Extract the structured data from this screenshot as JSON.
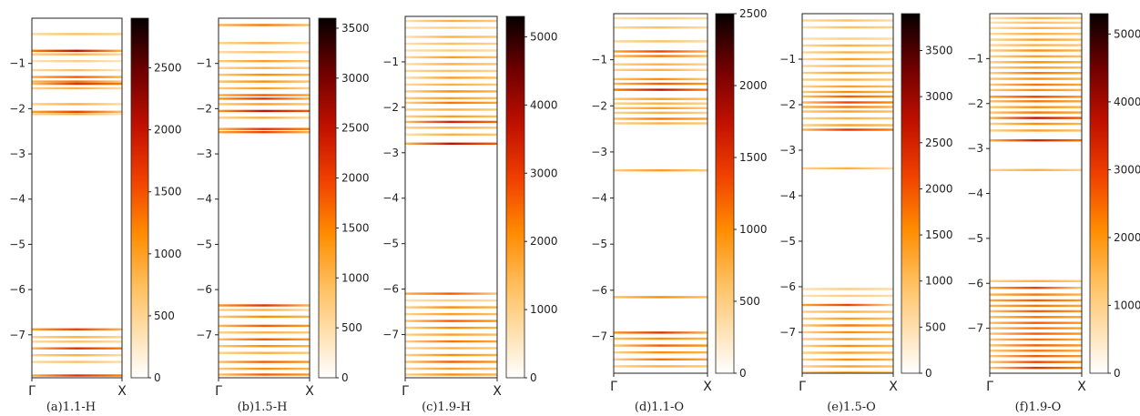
{
  "chart_data": [
    {
      "type": "heatmap",
      "caption": "(a)1.1-H",
      "xticks": [
        "Γ",
        "X"
      ],
      "yticks": [
        -1,
        -2,
        -3,
        -4,
        -5,
        -6,
        -7
      ],
      "ylim": [
        -7.95,
        0
      ],
      "colorbar": {
        "ticks": [
          0,
          500,
          1000,
          1500,
          2000,
          2500
        ],
        "max": 2900
      },
      "bands": [
        [
          -0.35,
          0.25,
          0.25
        ],
        [
          -0.72,
          0.7,
          0.4
        ],
        [
          -0.8,
          0.3,
          0.2
        ],
        [
          -0.95,
          0.2,
          0.15
        ],
        [
          -1.15,
          0.25,
          0.15
        ],
        [
          -1.3,
          0.5,
          0.4
        ],
        [
          -1.4,
          0.45,
          0.3
        ],
        [
          -1.45,
          0.4,
          0.6
        ],
        [
          -1.55,
          0.3,
          0.2
        ],
        [
          -1.9,
          0.3,
          0.2
        ],
        [
          -2.07,
          0.55,
          0.35
        ],
        [
          -2.12,
          0.3,
          0.15
        ],
        [
          -6.88,
          0.55,
          0.4
        ],
        [
          -7.05,
          0.3,
          0.25
        ],
        [
          -7.15,
          0.25,
          0.2
        ],
        [
          -7.3,
          0.45,
          0.6
        ],
        [
          -7.45,
          0.3,
          0.2
        ],
        [
          -7.6,
          0.25,
          0.2
        ],
        [
          -7.9,
          0.5,
          0.6
        ]
      ]
    },
    {
      "type": "heatmap",
      "caption": "(b)1.5-H",
      "xticks": [
        "Γ",
        "X"
      ],
      "yticks": [
        -1,
        -2,
        -3,
        -4,
        -5,
        -6,
        -7
      ],
      "ylim": [
        -7.95,
        0
      ],
      "colorbar": {
        "ticks": [
          0,
          500,
          1000,
          1500,
          2000,
          2500,
          3000,
          3500
        ],
        "max": 3600
      },
      "bands": [
        [
          -0.15,
          0.45,
          0.35
        ],
        [
          -0.55,
          0.3,
          0.2
        ],
        [
          -0.75,
          0.25,
          0.2
        ],
        [
          -0.95,
          0.35,
          0.3
        ],
        [
          -1.1,
          0.3,
          0.25
        ],
        [
          -1.25,
          0.35,
          0.4
        ],
        [
          -1.4,
          0.4,
          0.3
        ],
        [
          -1.55,
          0.35,
          0.25
        ],
        [
          -1.7,
          0.5,
          0.45
        ],
        [
          -1.78,
          0.6,
          0.4
        ],
        [
          -1.9,
          0.35,
          0.3
        ],
        [
          -2.05,
          0.6,
          0.7
        ],
        [
          -2.2,
          0.3,
          0.2
        ],
        [
          -2.45,
          0.5,
          0.6
        ],
        [
          -2.52,
          0.55,
          0.4
        ],
        [
          -6.35,
          0.6,
          0.4
        ],
        [
          -6.45,
          0.3,
          0.2
        ],
        [
          -6.6,
          0.35,
          0.4
        ],
        [
          -6.8,
          0.45,
          0.5
        ],
        [
          -6.95,
          0.3,
          0.3
        ],
        [
          -7.1,
          0.4,
          0.5
        ],
        [
          -7.25,
          0.35,
          0.4
        ],
        [
          -7.4,
          0.3,
          0.3
        ],
        [
          -7.6,
          0.4,
          0.5
        ],
        [
          -7.75,
          0.35,
          0.4
        ],
        [
          -7.88,
          0.4,
          0.5
        ]
      ]
    },
    {
      "type": "heatmap",
      "caption": "(c)1.9-H",
      "xticks": [
        "Γ",
        "X"
      ],
      "yticks": [
        -1,
        -2,
        -3,
        -4,
        -5,
        -6,
        -7
      ],
      "ylim": [
        -7.95,
        0
      ],
      "colorbar": {
        "ticks": [
          0,
          1000,
          2000,
          3000,
          4000,
          5000
        ],
        "max": 5300
      },
      "bands": [
        [
          -0.1,
          0.2,
          0.3
        ],
        [
          -0.25,
          0.2,
          0.2
        ],
        [
          -0.45,
          0.2,
          0.3
        ],
        [
          -0.6,
          0.2,
          0.25
        ],
        [
          -0.75,
          0.2,
          0.2
        ],
        [
          -0.9,
          0.25,
          0.35
        ],
        [
          -1.05,
          0.2,
          0.3
        ],
        [
          -1.2,
          0.25,
          0.25
        ],
        [
          -1.35,
          0.2,
          0.35
        ],
        [
          -1.5,
          0.25,
          0.3
        ],
        [
          -1.65,
          0.3,
          0.4
        ],
        [
          -1.8,
          0.35,
          0.35
        ],
        [
          -1.9,
          0.3,
          0.45
        ],
        [
          -2.05,
          0.3,
          0.3
        ],
        [
          -2.2,
          0.3,
          0.35
        ],
        [
          -2.32,
          0.4,
          0.65
        ],
        [
          -2.45,
          0.3,
          0.3
        ],
        [
          -2.6,
          0.2,
          0.3
        ],
        [
          -2.8,
          0.45,
          0.7
        ],
        [
          -6.1,
          0.5,
          0.3
        ],
        [
          -6.25,
          0.2,
          0.2
        ],
        [
          -6.4,
          0.3,
          0.4
        ],
        [
          -6.55,
          0.3,
          0.35
        ],
        [
          -6.7,
          0.35,
          0.5
        ],
        [
          -6.85,
          0.3,
          0.4
        ],
        [
          -7.0,
          0.3,
          0.35
        ],
        [
          -7.15,
          0.3,
          0.45
        ],
        [
          -7.3,
          0.25,
          0.3
        ],
        [
          -7.45,
          0.3,
          0.4
        ],
        [
          -7.6,
          0.35,
          0.5
        ],
        [
          -7.75,
          0.3,
          0.35
        ],
        [
          -7.88,
          0.3,
          0.4
        ]
      ]
    },
    {
      "type": "heatmap",
      "caption": "(d)1.1-O",
      "xticks": [
        "Γ",
        "X"
      ],
      "yticks": [
        -1,
        -2,
        -3,
        -4,
        -5,
        -6,
        -7
      ],
      "ylim": [
        -7.8,
        0
      ],
      "colorbar": {
        "ticks": [
          0,
          500,
          1000,
          1500,
          2000,
          2500
        ],
        "max": 2500
      },
      "bands": [
        [
          -0.1,
          0.2,
          0.2
        ],
        [
          -0.3,
          0.25,
          0.2
        ],
        [
          -0.6,
          0.25,
          0.2
        ],
        [
          -0.82,
          0.55,
          0.4
        ],
        [
          -0.92,
          0.45,
          0.35
        ],
        [
          -1.1,
          0.3,
          0.25
        ],
        [
          -1.22,
          0.3,
          0.2
        ],
        [
          -1.42,
          0.4,
          0.3
        ],
        [
          -1.52,
          0.45,
          0.5
        ],
        [
          -1.65,
          0.7,
          0.6
        ],
        [
          -1.85,
          0.35,
          0.35
        ],
        [
          -1.95,
          0.3,
          0.25
        ],
        [
          -2.05,
          0.35,
          0.3
        ],
        [
          -2.15,
          0.3,
          0.25
        ],
        [
          -2.28,
          0.4,
          0.45
        ],
        [
          -2.38,
          0.3,
          0.3
        ],
        [
          -3.4,
          0.35,
          0.3
        ],
        [
          -6.15,
          0.4,
          0.35
        ],
        [
          -6.92,
          0.6,
          0.4
        ],
        [
          -7.05,
          0.4,
          0.4
        ],
        [
          -7.2,
          0.35,
          0.5
        ],
        [
          -7.35,
          0.3,
          0.4
        ],
        [
          -7.5,
          0.3,
          0.45
        ],
        [
          -7.65,
          0.3,
          0.3
        ]
      ]
    },
    {
      "type": "heatmap",
      "caption": "(e)1.5-O",
      "xticks": [
        "Γ",
        "X"
      ],
      "yticks": [
        -1,
        -2,
        -3,
        -4,
        -5,
        -6,
        -7
      ],
      "ylim": [
        -7.9,
        0
      ],
      "colorbar": {
        "ticks": [
          0,
          500,
          1000,
          1500,
          2000,
          2500,
          3000,
          3500
        ],
        "max": 3900
      },
      "bands": [
        [
          -0.15,
          0.25,
          0.2
        ],
        [
          -0.3,
          0.2,
          0.25
        ],
        [
          -0.55,
          0.2,
          0.2
        ],
        [
          -0.7,
          0.25,
          0.3
        ],
        [
          -0.85,
          0.25,
          0.3
        ],
        [
          -1.0,
          0.25,
          0.35
        ],
        [
          -1.15,
          0.25,
          0.3
        ],
        [
          -1.3,
          0.3,
          0.35
        ],
        [
          -1.45,
          0.3,
          0.3
        ],
        [
          -1.6,
          0.3,
          0.35
        ],
        [
          -1.72,
          0.35,
          0.4
        ],
        [
          -1.82,
          0.4,
          0.5
        ],
        [
          -1.95,
          0.4,
          0.55
        ],
        [
          -2.05,
          0.45,
          0.4
        ],
        [
          -2.15,
          0.35,
          0.35
        ],
        [
          -2.3,
          0.3,
          0.3
        ],
        [
          -2.45,
          0.3,
          0.35
        ],
        [
          -2.55,
          0.45,
          0.6
        ],
        [
          -3.4,
          0.3,
          0.2
        ],
        [
          -6.05,
          0.2,
          0.2
        ],
        [
          -6.2,
          0.2,
          0.2
        ],
        [
          -6.4,
          0.55,
          0.25
        ],
        [
          -6.55,
          0.3,
          0.3
        ],
        [
          -6.7,
          0.3,
          0.35
        ],
        [
          -6.85,
          0.35,
          0.45
        ],
        [
          -7.0,
          0.3,
          0.4
        ],
        [
          -7.15,
          0.3,
          0.35
        ],
        [
          -7.3,
          0.3,
          0.4
        ],
        [
          -7.45,
          0.3,
          0.35
        ],
        [
          -7.6,
          0.3,
          0.4
        ],
        [
          -7.75,
          0.3,
          0.35
        ],
        [
          -7.88,
          0.3,
          0.3
        ]
      ]
    },
    {
      "type": "heatmap",
      "caption": "(f)1.9-O",
      "xticks": [
        "Γ",
        "X"
      ],
      "yticks": [
        -1,
        -2,
        -3,
        -4,
        -5,
        -6,
        -7
      ],
      "ylim": [
        -8.0,
        0
      ],
      "colorbar": {
        "ticks": [
          0,
          1000,
          2000,
          3000,
          4000,
          5000
        ],
        "max": 5300
      },
      "bands": [
        [
          -0.1,
          0.2,
          0.3
        ],
        [
          -0.2,
          0.2,
          0.25
        ],
        [
          -0.32,
          0.2,
          0.3
        ],
        [
          -0.45,
          0.25,
          0.3
        ],
        [
          -0.58,
          0.25,
          0.35
        ],
        [
          -0.7,
          0.25,
          0.3
        ],
        [
          -0.82,
          0.3,
          0.4
        ],
        [
          -0.95,
          0.3,
          0.35
        ],
        [
          -1.08,
          0.3,
          0.4
        ],
        [
          -1.2,
          0.3,
          0.35
        ],
        [
          -1.32,
          0.3,
          0.45
        ],
        [
          -1.45,
          0.35,
          0.4
        ],
        [
          -1.58,
          0.35,
          0.45
        ],
        [
          -1.7,
          0.35,
          0.4
        ],
        [
          -1.85,
          0.55,
          0.5
        ],
        [
          -1.95,
          0.4,
          0.45
        ],
        [
          -2.08,
          0.35,
          0.4
        ],
        [
          -2.2,
          0.35,
          0.45
        ],
        [
          -2.32,
          0.45,
          0.7
        ],
        [
          -2.45,
          0.3,
          0.4
        ],
        [
          -2.6,
          0.3,
          0.35
        ],
        [
          -2.82,
          0.5,
          0.65
        ],
        [
          -3.48,
          0.3,
          0.25
        ],
        [
          -5.95,
          0.3,
          0.3
        ],
        [
          -6.1,
          0.55,
          0.3
        ],
        [
          -6.25,
          0.45,
          0.4
        ],
        [
          -6.38,
          0.5,
          0.5
        ],
        [
          -6.5,
          0.45,
          0.45
        ],
        [
          -6.62,
          0.4,
          0.5
        ],
        [
          -6.75,
          0.4,
          0.45
        ],
        [
          -6.88,
          0.4,
          0.5
        ],
        [
          -7.0,
          0.35,
          0.45
        ],
        [
          -7.12,
          0.35,
          0.5
        ],
        [
          -7.25,
          0.35,
          0.45
        ],
        [
          -7.38,
          0.35,
          0.5
        ],
        [
          -7.5,
          0.35,
          0.45
        ],
        [
          -7.62,
          0.35,
          0.5
        ],
        [
          -7.75,
          0.35,
          0.55
        ],
        [
          -7.88,
          0.35,
          0.6
        ]
      ]
    }
  ]
}
